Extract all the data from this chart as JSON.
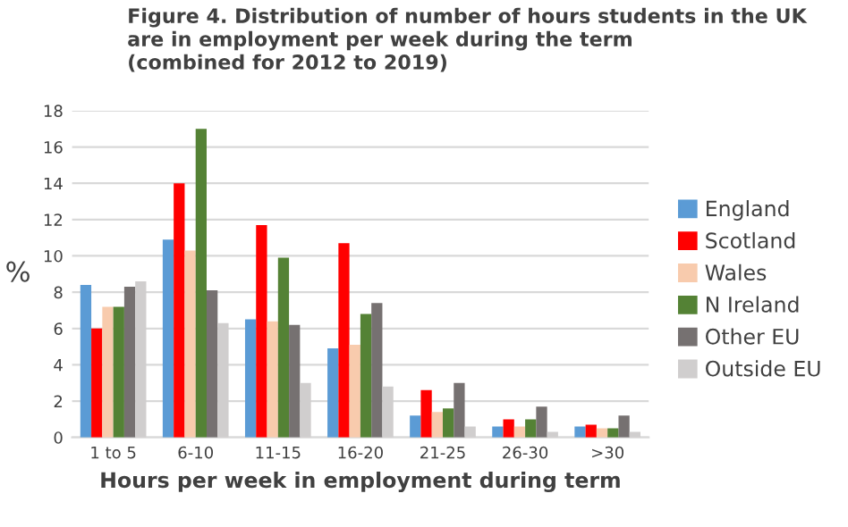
{
  "chart_data": {
    "type": "bar",
    "title": "Figure 4. Distribution of number of hours students in the UK\nare in employment per week during the term\n(combined for 2012 to 2019)",
    "xlabel": "Hours per week in employment during term",
    "ylabel": "%",
    "categories": [
      "1 to 5",
      "6-10",
      "11-15",
      "16-20",
      "21-25",
      "26-30",
      ">30"
    ],
    "series": [
      {
        "name": "England",
        "color": "#5b9bd5",
        "values": [
          8.4,
          10.9,
          6.5,
          4.9,
          1.2,
          0.6,
          0.6
        ]
      },
      {
        "name": "Scotland",
        "color": "#ff0000",
        "values": [
          6.0,
          14.0,
          11.7,
          10.7,
          2.6,
          1.0,
          0.7
        ]
      },
      {
        "name": "Wales",
        "color": "#f8cbad",
        "values": [
          7.2,
          10.3,
          6.4,
          5.1,
          1.4,
          0.6,
          0.5
        ]
      },
      {
        "name": "N Ireland",
        "color": "#548235",
        "values": [
          7.2,
          17.0,
          9.9,
          6.8,
          1.6,
          1.0,
          0.5
        ]
      },
      {
        "name": "Other EU",
        "color": "#767171",
        "values": [
          8.3,
          8.1,
          6.2,
          7.4,
          3.0,
          1.7,
          1.2
        ]
      },
      {
        "name": "Outside EU",
        "color": "#d0cece",
        "values": [
          8.6,
          6.3,
          3.0,
          2.8,
          0.6,
          0.3,
          0.3
        ]
      }
    ],
    "ylim": [
      0,
      18
    ],
    "yticks": [
      0,
      2,
      4,
      6,
      8,
      10,
      12,
      14,
      16,
      18
    ],
    "grid": "y",
    "legend": "right"
  }
}
